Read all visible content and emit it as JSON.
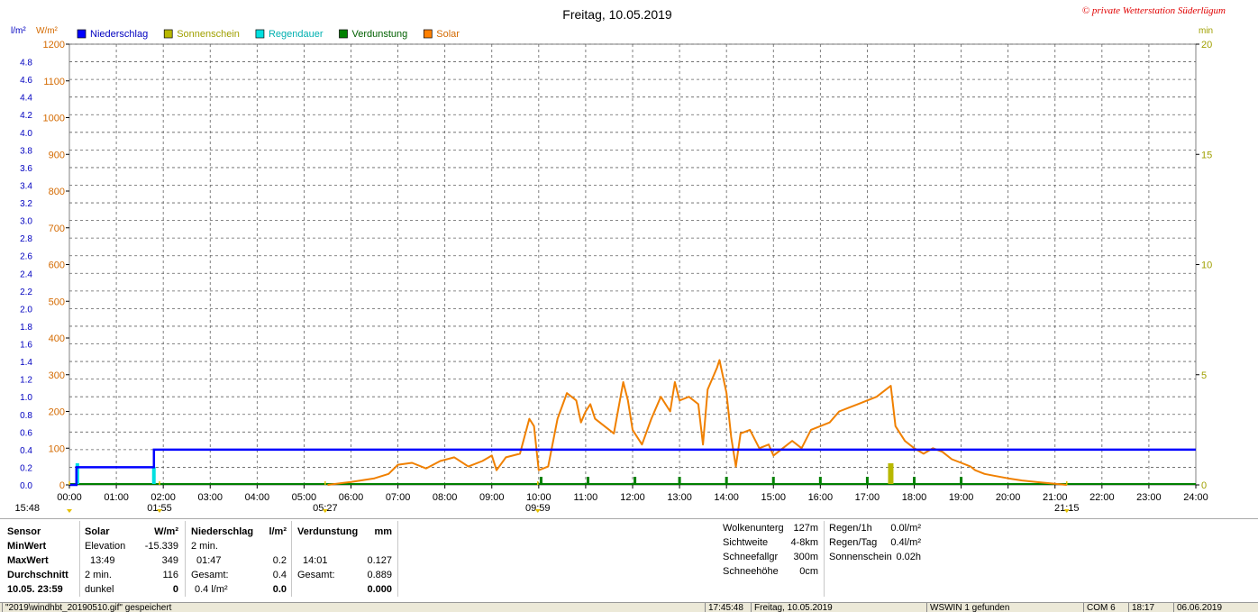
{
  "title": "Freitag, 10.05.2019",
  "copyright": "© private Wetterstation Süderlügum",
  "units": {
    "left1": "l/m²",
    "left2": "W/m²",
    "right": "min"
  },
  "legend": [
    {
      "label": "Niederschlag",
      "color": "#0000ff"
    },
    {
      "label": "Sonnenschein",
      "color": "#b8b800"
    },
    {
      "label": "Regendauer",
      "color": "#00e0e0"
    },
    {
      "label": "Verdunstung",
      "color": "#008000"
    },
    {
      "label": "Solar",
      "color": "#ff8000"
    }
  ],
  "colors": {
    "precip": "#0000ff",
    "solar": "#f08000",
    "sun": "#b8b800",
    "rainDur": "#00e0e0",
    "evap": "#008000",
    "solarAxis": "#d46a00",
    "precipAxis": "#0000c0",
    "minAxis": "#a0a000"
  },
  "chart_data": {
    "type": "line",
    "xlim": [
      0,
      24
    ],
    "x_ticks": [
      "00:00",
      "01:00",
      "02:00",
      "03:00",
      "04:00",
      "05:00",
      "06:00",
      "07:00",
      "08:00",
      "09:00",
      "10:00",
      "11:00",
      "12:00",
      "13:00",
      "14:00",
      "15:00",
      "16:00",
      "17:00",
      "18:00",
      "19:00",
      "20:00",
      "21:00",
      "22:00",
      "23:00",
      "24:00"
    ],
    "y_solar": {
      "lim": [
        0,
        1200
      ],
      "ticks": [
        "0",
        "100",
        "200",
        "300",
        "400",
        "500",
        "600",
        "700",
        "800",
        "900",
        "1000",
        "1100",
        "1200"
      ]
    },
    "y_precip": {
      "lim": [
        0,
        5.0
      ],
      "ticks": [
        "0.0",
        "0.2",
        "0.4",
        "0.6",
        "0.8",
        "1.0",
        "1.2",
        "1.4",
        "1.6",
        "1.8",
        "2.0",
        "2.2",
        "2.4",
        "2.6",
        "2.8",
        "3.0",
        "3.2",
        "3.4",
        "3.6",
        "3.8",
        "4.0",
        "4.2",
        "4.4",
        "4.6",
        "4.8"
      ]
    },
    "y_minutes": {
      "lim": [
        0,
        20
      ],
      "ticks": [
        "0",
        "5",
        "10",
        "15",
        "20"
      ]
    },
    "markers": [
      {
        "label": "15:48",
        "x": 0
      },
      {
        "label": "01:55",
        "x": 1.92
      },
      {
        "label": "05:27",
        "x": 5.45
      },
      {
        "label": "09:59",
        "x": 9.98
      },
      {
        "label": "21:15",
        "x": 21.25
      }
    ],
    "series": [
      {
        "name": "Niederschlag",
        "points": [
          [
            0,
            0
          ],
          [
            0.15,
            0
          ],
          [
            0.15,
            0.2
          ],
          [
            1.8,
            0.2
          ],
          [
            1.8,
            0.4
          ],
          [
            24,
            0.4
          ]
        ]
      },
      {
        "name": "Solar",
        "points": [
          [
            5.5,
            0
          ],
          [
            6.0,
            8
          ],
          [
            6.5,
            18
          ],
          [
            6.8,
            30
          ],
          [
            7.0,
            55
          ],
          [
            7.3,
            60
          ],
          [
            7.6,
            45
          ],
          [
            7.9,
            65
          ],
          [
            8.2,
            75
          ],
          [
            8.5,
            50
          ],
          [
            8.8,
            65
          ],
          [
            9.0,
            80
          ],
          [
            9.1,
            40
          ],
          [
            9.3,
            75
          ],
          [
            9.6,
            85
          ],
          [
            9.8,
            180
          ],
          [
            9.9,
            160
          ],
          [
            10.0,
            40
          ],
          [
            10.2,
            50
          ],
          [
            10.4,
            180
          ],
          [
            10.6,
            250
          ],
          [
            10.8,
            230
          ],
          [
            10.9,
            170
          ],
          [
            11.0,
            200
          ],
          [
            11.1,
            220
          ],
          [
            11.2,
            180
          ],
          [
            11.4,
            160
          ],
          [
            11.6,
            140
          ],
          [
            11.8,
            280
          ],
          [
            11.9,
            230
          ],
          [
            12.0,
            150
          ],
          [
            12.2,
            110
          ],
          [
            12.4,
            180
          ],
          [
            12.6,
            240
          ],
          [
            12.8,
            200
          ],
          [
            12.9,
            280
          ],
          [
            13.0,
            230
          ],
          [
            13.2,
            240
          ],
          [
            13.4,
            220
          ],
          [
            13.5,
            110
          ],
          [
            13.6,
            260
          ],
          [
            13.8,
            320
          ],
          [
            13.85,
            340
          ],
          [
            14.0,
            250
          ],
          [
            14.1,
            130
          ],
          [
            14.2,
            50
          ],
          [
            14.3,
            140
          ],
          [
            14.5,
            150
          ],
          [
            14.7,
            100
          ],
          [
            14.9,
            110
          ],
          [
            15.0,
            80
          ],
          [
            15.2,
            100
          ],
          [
            15.4,
            120
          ],
          [
            15.6,
            100
          ],
          [
            15.8,
            150
          ],
          [
            16.0,
            160
          ],
          [
            16.2,
            170
          ],
          [
            16.4,
            200
          ],
          [
            16.6,
            210
          ],
          [
            16.8,
            220
          ],
          [
            17.0,
            230
          ],
          [
            17.2,
            240
          ],
          [
            17.4,
            260
          ],
          [
            17.5,
            270
          ],
          [
            17.6,
            160
          ],
          [
            17.8,
            120
          ],
          [
            18.0,
            100
          ],
          [
            18.2,
            85
          ],
          [
            18.4,
            100
          ],
          [
            18.6,
            90
          ],
          [
            18.8,
            70
          ],
          [
            19.0,
            60
          ],
          [
            19.2,
            50
          ],
          [
            19.3,
            40
          ],
          [
            19.5,
            30
          ],
          [
            19.7,
            25
          ],
          [
            20.0,
            18
          ],
          [
            20.3,
            12
          ],
          [
            20.6,
            8
          ],
          [
            21.0,
            3
          ],
          [
            21.25,
            0
          ]
        ]
      }
    ]
  },
  "info": {
    "col1": [
      "Sensor",
      "MinWert",
      "MaxWert",
      "Durchschnitt",
      "10.05. 23:59"
    ],
    "solar_header": "Solar",
    "solar_unit": "W/m²",
    "solar_rows": [
      [
        "Elevation",
        "-15.339"
      ],
      [
        "13:49",
        "349"
      ],
      [
        "2 min.",
        "116"
      ],
      [
        "dunkel",
        "0"
      ]
    ],
    "precip_header": "Niederschlag",
    "precip_unit": "l/m²",
    "precip_rows": [
      [
        "2 min.",
        ""
      ],
      [
        "01:47",
        "0.2"
      ],
      [
        "Gesamt:",
        "0.4"
      ],
      [
        "0.4 l/m²",
        "0.0"
      ]
    ],
    "evap_header": "Verdunstung",
    "evap_unit": "mm",
    "evap_rows": [
      [
        "",
        ""
      ],
      [
        "14:01",
        "0.127"
      ],
      [
        "Gesamt:",
        "0.889"
      ],
      [
        "",
        "0.000"
      ]
    ],
    "right1": [
      [
        "Wolkenunterg",
        "127m"
      ],
      [
        "Sichtweite",
        "4-8km"
      ],
      [
        "Schneefallgr",
        "300m"
      ],
      [
        "Schneehöhe",
        "0cm"
      ]
    ],
    "right2": [
      [
        "Regen/1h",
        "0.0l/m²"
      ],
      [
        "Regen/Tag",
        "0.4l/m²"
      ],
      [
        "Sonnenschein",
        "0.02h"
      ]
    ]
  },
  "statusbar": [
    "\"2019\\windhbt_20190510.gif\" gespeichert",
    "17:45:48",
    "Freitag, 10.05.2019",
    "WSWIN 1 gefunden",
    "COM 6",
    "18:17",
    "06.06.2019"
  ]
}
